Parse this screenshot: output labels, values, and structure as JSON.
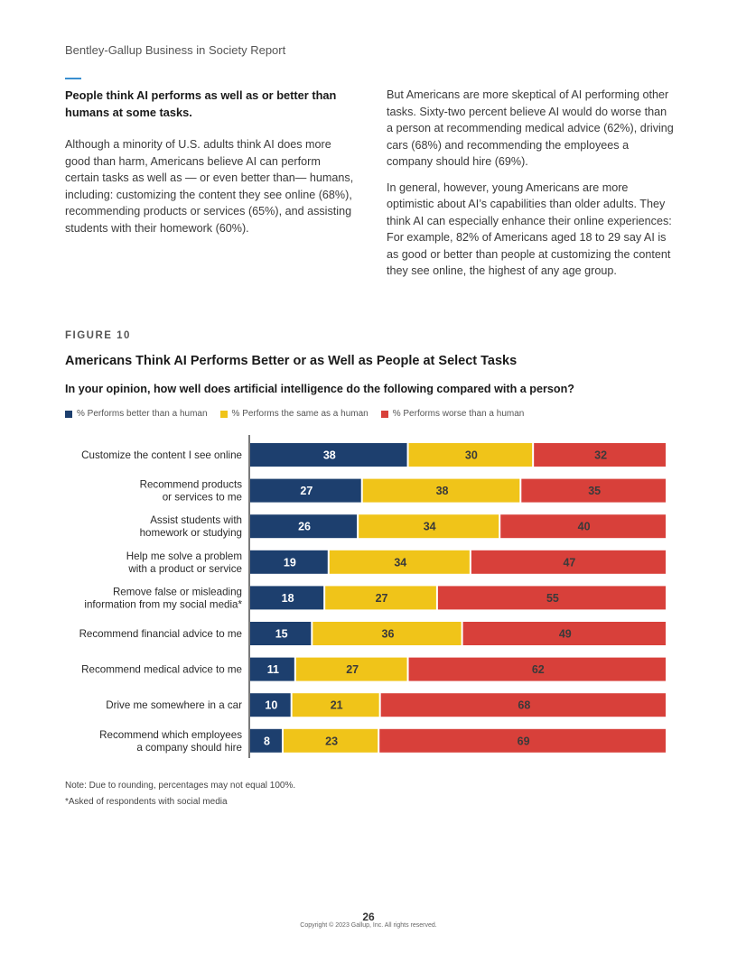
{
  "header": {
    "report_title": "Bentley-Gallup Business in Society Report"
  },
  "left_column": {
    "heading": "People think AI performs as well as or better than humans at some tasks.",
    "paragraph": "Although a minority of U.S. adults think AI does more good than harm, Americans believe AI can perform certain tasks as well as — or even better than— humans, including: customizing the content they see online (68%), recommending products or services (65%), and assisting students with their homework (60%)."
  },
  "right_column": {
    "paragraph1": "But Americans are more skeptical of AI performing other tasks. Sixty-two percent believe AI would do worse than a person at recommending medical advice (62%), driving cars (68%) and recommending the employees a company should hire (69%).",
    "paragraph2": "In general, however, young Americans are more optimistic about AI’s capabilities than older adults. They think AI can especially enhance their online experiences: For example, 82% of Americans aged 18 to 29 say AI is as good or better than people at customizing the content they see online, the highest of any age group."
  },
  "figure": {
    "label": "FIGURE 10",
    "title": "Americans Think AI Performs Better or as Well as People at Select Tasks",
    "question": "In your opinion, how well does artificial intelligence do the following compared with a person?"
  },
  "colors": {
    "better": "#1d3f6e",
    "same": "#f0c419",
    "worse": "#d8403a"
  },
  "chart_data": {
    "type": "bar",
    "orientation": "horizontal",
    "stacked": true,
    "categories": [
      [
        "Customize the content I see online"
      ],
      [
        "Recommend products",
        "or services to me"
      ],
      [
        "Assist students with",
        "homework or studying"
      ],
      [
        "Help me solve a problem",
        "with a product or service"
      ],
      [
        "Remove false or misleading",
        "information from my social media*"
      ],
      [
        "Recommend financial advice to me"
      ],
      [
        "Recommend medical advice to me"
      ],
      [
        "Drive me somewhere in a car"
      ],
      [
        "Recommend which employees",
        "a company should hire"
      ]
    ],
    "series": [
      {
        "name": "% Performs better than a human",
        "values": [
          38,
          27,
          26,
          19,
          18,
          15,
          11,
          10,
          8
        ]
      },
      {
        "name": "% Performs the same as a human",
        "values": [
          30,
          38,
          34,
          34,
          27,
          36,
          27,
          21,
          23
        ]
      },
      {
        "name": "% Performs worse than a human",
        "values": [
          32,
          35,
          40,
          47,
          55,
          49,
          62,
          68,
          69
        ]
      }
    ],
    "legend_position": "top-left"
  },
  "notes": {
    "rounding": "Note: Due to rounding, percentages may not equal 100%.",
    "asterisk": "*Asked of respondents with social media"
  },
  "footer": {
    "page_number": "26",
    "copyright": "Copyright © 2023 Gallup, Inc. All rights reserved."
  }
}
